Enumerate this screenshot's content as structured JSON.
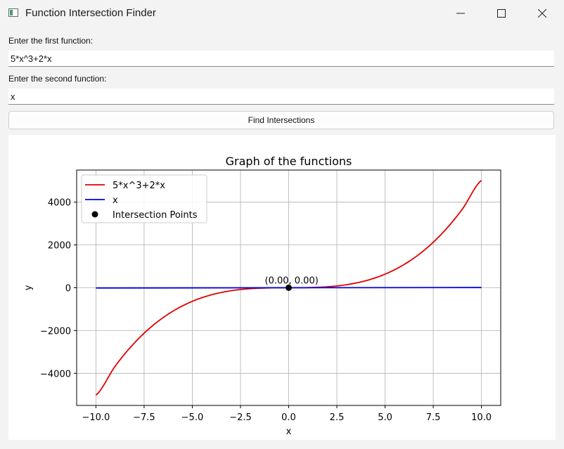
{
  "window": {
    "title": "Function Intersection Finder",
    "controls": {
      "minimize_icon": "minimize-icon",
      "maximize_icon": "maximize-icon",
      "close_icon": "close-icon"
    }
  },
  "form": {
    "first_label": "Enter the first function:",
    "first_value": "5*x^3+2*x",
    "second_label": "Enter the second function:",
    "second_value": "x",
    "find_button": "Find Intersections"
  },
  "chart_data": {
    "type": "line",
    "title": "Graph of the functions",
    "xlabel": "x",
    "ylabel": "y",
    "xlim": [
      -11,
      11
    ],
    "ylim": [
      -5500,
      5500
    ],
    "grid": true,
    "legend_position": "top-left",
    "xticks": [
      -10,
      -7.5,
      -5,
      -2.5,
      0,
      2.5,
      5,
      7.5,
      10
    ],
    "xtick_labels": [
      "−10.0",
      "−7.5",
      "−5.0",
      "−2.5",
      "0.0",
      "2.5",
      "5.0",
      "7.5",
      "10.0"
    ],
    "yticks": [
      -4000,
      -2000,
      0,
      2000,
      4000
    ],
    "ytick_labels": [
      "−4000",
      "−2000",
      "0",
      "2000",
      "4000"
    ],
    "series": [
      {
        "name": "5*x^3+2*x",
        "color": "#e00000",
        "x": [
          -10,
          -9,
          -8,
          -7,
          -6,
          -5,
          -4,
          -3,
          -2,
          -1,
          0,
          1,
          2,
          3,
          4,
          5,
          6,
          7,
          8,
          9,
          10
        ],
        "y": [
          -5020,
          -3663,
          -2576,
          -1729,
          -1092,
          -635,
          -328,
          -141,
          -44,
          -7,
          0,
          7,
          44,
          141,
          328,
          635,
          1092,
          1729,
          2576,
          3663,
          5020
        ]
      },
      {
        "name": "x",
        "color": "#0000e0",
        "x": [
          -10,
          10
        ],
        "y": [
          -10,
          10
        ]
      }
    ],
    "points": {
      "name": "Intersection Points",
      "color": "#000000",
      "x": [
        0
      ],
      "y": [
        0
      ],
      "labels": [
        "(0.00, 0.00)"
      ]
    }
  }
}
